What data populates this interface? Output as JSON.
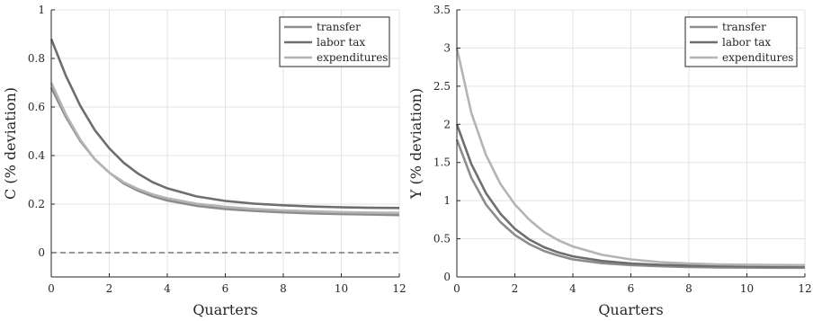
{
  "chart_data": [
    {
      "type": "line",
      "xlabel": "Quarters",
      "ylabel": "C (% deviation)",
      "xlim": [
        0,
        12
      ],
      "ylim": [
        -0.1,
        1
      ],
      "xticks": [
        0,
        2,
        4,
        6,
        8,
        10,
        12
      ],
      "yticks": [
        0,
        0.2,
        0.4,
        0.6,
        0.8,
        1
      ],
      "ytick_labels": [
        "0",
        "0.2",
        "0.4",
        "0.6",
        "0.8",
        "1"
      ],
      "grid": true,
      "legend_position": "top-right",
      "zero_line": {
        "y": 0,
        "style": "dashed"
      },
      "series": [
        {
          "name": "transfer",
          "color": "#8c8c8c",
          "x": [
            0,
            0.5,
            1,
            1.5,
            2,
            2.5,
            3,
            3.5,
            4,
            5,
            6,
            7,
            8,
            9,
            10,
            11,
            12
          ],
          "values": [
            0.68,
            0.56,
            0.46,
            0.385,
            0.33,
            0.285,
            0.255,
            0.232,
            0.215,
            0.193,
            0.18,
            0.172,
            0.166,
            0.162,
            0.159,
            0.157,
            0.155
          ]
        },
        {
          "name": "labor tax",
          "color": "#6e6e6e",
          "x": [
            0,
            0.5,
            1,
            1.5,
            2,
            2.5,
            3,
            3.5,
            4,
            5,
            6,
            7,
            8,
            9,
            10,
            11,
            12
          ],
          "values": [
            0.88,
            0.73,
            0.605,
            0.505,
            0.43,
            0.37,
            0.325,
            0.29,
            0.265,
            0.232,
            0.213,
            0.202,
            0.195,
            0.19,
            0.187,
            0.185,
            0.184
          ]
        },
        {
          "name": "expenditures",
          "color": "#b4b4b4",
          "x": [
            0,
            0.5,
            1,
            1.5,
            2,
            2.5,
            3,
            3.5,
            4,
            5,
            6,
            7,
            8,
            9,
            10,
            11,
            12
          ],
          "values": [
            0.7,
            0.57,
            0.465,
            0.385,
            0.33,
            0.29,
            0.262,
            0.24,
            0.224,
            0.202,
            0.189,
            0.18,
            0.174,
            0.17,
            0.167,
            0.165,
            0.164
          ]
        }
      ]
    },
    {
      "type": "line",
      "xlabel": "Quarters",
      "ylabel": "Y (% deviation)",
      "xlim": [
        0,
        12
      ],
      "ylim": [
        0,
        3.5
      ],
      "xticks": [
        0,
        2,
        4,
        6,
        8,
        10,
        12
      ],
      "yticks": [
        0,
        0.5,
        1,
        1.5,
        2,
        2.5,
        3,
        3.5
      ],
      "ytick_labels": [
        "0",
        "0.5",
        "1",
        "1.5",
        "2",
        "2.5",
        "3",
        "3.5"
      ],
      "grid": true,
      "legend_position": "top-right",
      "zero_line": {
        "y": 0,
        "style": "dashed"
      },
      "series": [
        {
          "name": "transfer",
          "color": "#8c8c8c",
          "x": [
            0,
            0.5,
            1,
            1.5,
            2,
            2.5,
            3,
            3.5,
            4,
            5,
            6,
            7,
            8,
            9,
            10,
            11,
            12
          ],
          "values": [
            1.8,
            1.3,
            0.95,
            0.72,
            0.55,
            0.43,
            0.34,
            0.28,
            0.23,
            0.18,
            0.155,
            0.14,
            0.13,
            0.125,
            0.122,
            0.12,
            0.12
          ]
        },
        {
          "name": "labor tax",
          "color": "#6e6e6e",
          "x": [
            0,
            0.5,
            1,
            1.5,
            2,
            2.5,
            3,
            3.5,
            4,
            5,
            6,
            7,
            8,
            9,
            10,
            11,
            12
          ],
          "values": [
            2.0,
            1.48,
            1.1,
            0.83,
            0.63,
            0.49,
            0.39,
            0.32,
            0.27,
            0.21,
            0.175,
            0.158,
            0.148,
            0.142,
            0.139,
            0.137,
            0.136
          ]
        },
        {
          "name": "expenditures",
          "color": "#b4b4b4",
          "x": [
            0,
            0.5,
            1,
            1.5,
            2,
            2.5,
            3,
            3.5,
            4,
            5,
            6,
            7,
            8,
            9,
            10,
            11,
            12
          ],
          "values": [
            3.0,
            2.15,
            1.6,
            1.22,
            0.95,
            0.75,
            0.59,
            0.48,
            0.4,
            0.29,
            0.23,
            0.195,
            0.175,
            0.165,
            0.16,
            0.157,
            0.155
          ]
        }
      ]
    }
  ]
}
